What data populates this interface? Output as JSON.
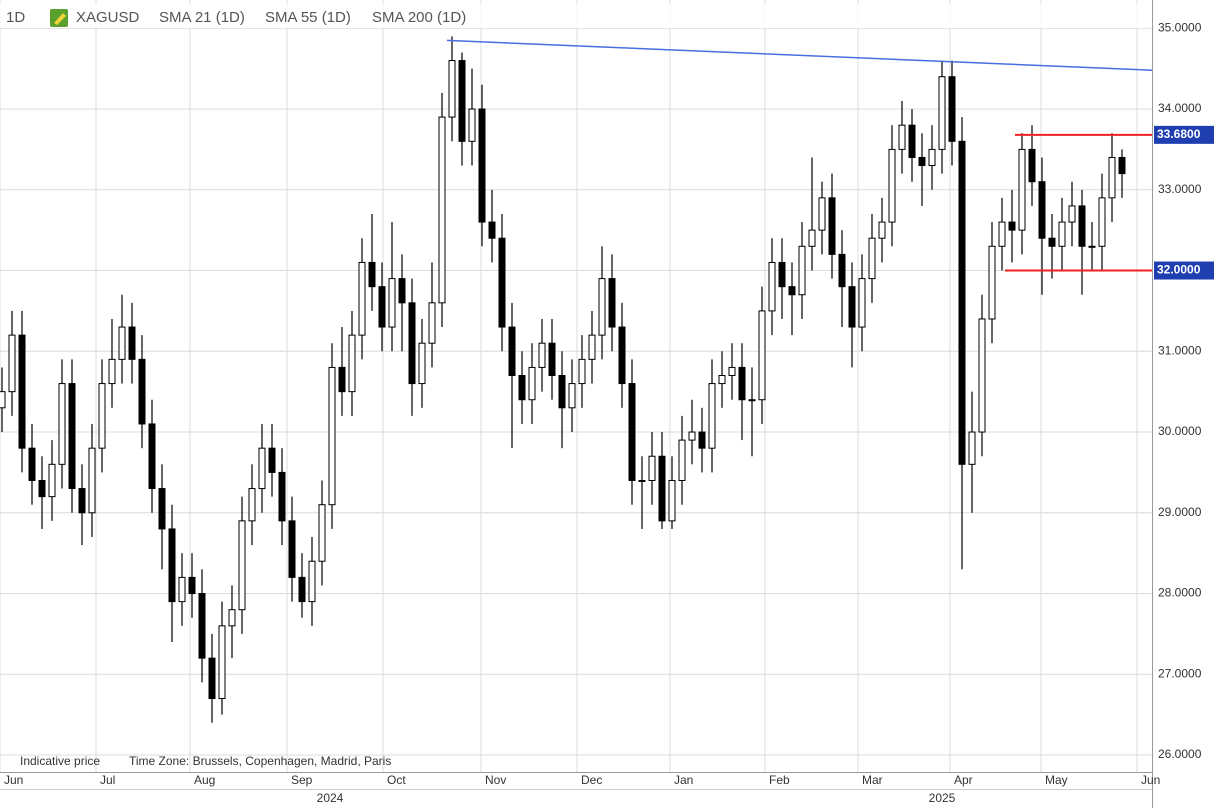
{
  "header": {
    "interval": "1D",
    "symbol": "XAGUSD",
    "indicators": [
      "SMA 21 (1D)",
      "SMA 55 (1D)",
      "SMA 200 (1D)"
    ]
  },
  "footer": {
    "note": "Indicative price",
    "timezone": "Time Zone: Brussels, Copenhagen, Madrid, Paris"
  },
  "chart_data": {
    "type": "candlestick",
    "up_color": "#ffffff",
    "down_color": "#000000",
    "grid": true,
    "ylim": [
      25.79,
      35.35
    ],
    "yticks": [
      {
        "value": 26,
        "label": "26.0000"
      },
      {
        "value": 27,
        "label": "27.0000"
      },
      {
        "value": 28,
        "label": "28.0000"
      },
      {
        "value": 29,
        "label": "29.0000"
      },
      {
        "value": 30,
        "label": "30.0000"
      },
      {
        "value": 31,
        "label": "31.0000"
      },
      {
        "value": 32,
        "label": "32.0000"
      },
      {
        "value": 33,
        "label": "33.0000"
      },
      {
        "value": 34,
        "label": "34.0000"
      },
      {
        "value": 35,
        "label": "35.0000"
      }
    ],
    "xlim": [
      -0.2,
      115
    ],
    "xticks": [
      {
        "value": -0.2,
        "label": "Jun"
      },
      {
        "value": 9.4,
        "label": "Jul"
      },
      {
        "value": 18.8,
        "label": "Aug"
      },
      {
        "value": 28.5,
        "label": "Sep"
      },
      {
        "value": 38.1,
        "label": "Oct"
      },
      {
        "value": 47.9,
        "label": "Nov"
      },
      {
        "value": 57.5,
        "label": "Dec"
      },
      {
        "value": 66.8,
        "label": "Jan"
      },
      {
        "value": 76.3,
        "label": "Feb"
      },
      {
        "value": 85.6,
        "label": "Mar"
      },
      {
        "value": 94.8,
        "label": "Apr"
      },
      {
        "value": 103.9,
        "label": "May"
      },
      {
        "value": 113.5,
        "label": "Jun"
      }
    ],
    "year_labels": [
      {
        "value": 32.8,
        "label": "2024"
      },
      {
        "value": 94,
        "label": "2025"
      }
    ],
    "open": [
      30.3,
      30.5,
      31.2,
      29.8,
      29.4,
      29.2,
      29.6,
      30.6,
      29.3,
      29.0,
      29.8,
      30.6,
      30.9,
      31.3,
      30.9,
      30.1,
      29.3,
      28.8,
      27.9,
      28.2,
      28.0,
      27.2,
      26.7,
      27.6,
      27.8,
      28.9,
      29.3,
      29.8,
      29.5,
      28.9,
      28.2,
      27.9,
      28.4,
      29.1,
      30.8,
      30.5,
      31.2,
      32.1,
      31.8,
      31.3,
      31.9,
      31.6,
      30.6,
      31.1,
      31.6,
      33.9,
      34.6,
      33.6,
      34.0,
      32.6,
      32.4,
      31.3,
      30.7,
      30.4,
      30.8,
      31.1,
      30.7,
      30.3,
      30.6,
      30.9,
      31.2,
      31.9,
      31.3,
      30.6,
      29.4,
      29.4,
      29.7,
      28.9,
      29.4,
      29.9,
      30.0,
      29.8,
      30.6,
      30.7,
      30.8,
      30.4,
      30.4,
      31.5,
      32.1,
      31.8,
      31.7,
      32.3,
      32.5,
      32.9,
      32.2,
      31.8,
      31.3,
      31.9,
      32.4,
      32.6,
      33.5,
      33.8,
      33.4,
      33.3,
      33.5,
      34.4,
      33.6,
      29.6,
      30.0,
      31.4,
      32.3,
      32.6,
      32.5,
      33.5,
      33.1,
      32.4,
      32.3,
      32.6,
      32.8,
      32.3,
      32.3,
      32.9,
      33.4
    ],
    "high": [
      30.8,
      31.5,
      31.5,
      30.1,
      29.7,
      29.9,
      30.9,
      30.9,
      29.6,
      30.1,
      30.9,
      31.4,
      31.7,
      31.6,
      31.2,
      30.4,
      29.6,
      29.1,
      28.5,
      28.5,
      28.3,
      27.5,
      27.9,
      28.1,
      29.2,
      29.6,
      30.1,
      30.1,
      29.8,
      29.2,
      28.5,
      28.7,
      29.4,
      31.1,
      31.3,
      31.5,
      32.4,
      32.7,
      32.1,
      32.6,
      32.2,
      31.9,
      31.4,
      32.1,
      34.2,
      34.9,
      34.7,
      34.5,
      34.3,
      33.0,
      32.7,
      31.6,
      31.0,
      31.1,
      31.4,
      31.4,
      31.0,
      30.9,
      31.2,
      31.5,
      32.3,
      32.2,
      31.6,
      30.9,
      29.7,
      30.0,
      30.0,
      29.7,
      30.2,
      30.4,
      30.3,
      30.9,
      31.0,
      31.1,
      31.1,
      30.8,
      31.8,
      32.4,
      32.4,
      32.1,
      32.6,
      33.4,
      33.1,
      33.2,
      32.5,
      32.1,
      32.2,
      32.7,
      32.9,
      33.8,
      34.1,
      34.0,
      33.7,
      33.8,
      34.6,
      34.6,
      33.9,
      30.5,
      31.7,
      32.6,
      32.9,
      33.0,
      33.7,
      33.8,
      33.4,
      32.7,
      32.9,
      33.1,
      33.0,
      32.6,
      33.2,
      33.7,
      33.5
    ],
    "low": [
      30.0,
      30.2,
      29.5,
      29.1,
      28.8,
      28.9,
      29.3,
      29.0,
      28.6,
      28.7,
      29.5,
      30.3,
      30.6,
      30.6,
      29.8,
      29.0,
      28.3,
      27.4,
      27.6,
      27.7,
      26.9,
      26.4,
      26.5,
      27.2,
      27.5,
      28.6,
      29.0,
      29.2,
      28.6,
      27.9,
      27.7,
      27.6,
      28.1,
      28.8,
      30.2,
      30.2,
      30.9,
      31.5,
      31.0,
      31.0,
      31.0,
      30.2,
      30.3,
      30.8,
      31.3,
      33.6,
      33.3,
      33.3,
      32.3,
      32.1,
      31.0,
      29.8,
      30.1,
      30.1,
      30.5,
      30.4,
      29.8,
      30.0,
      30.3,
      30.6,
      30.9,
      31.0,
      30.3,
      29.1,
      28.8,
      29.1,
      28.8,
      28.8,
      29.1,
      29.6,
      29.5,
      29.5,
      30.3,
      30.4,
      29.9,
      29.7,
      30.1,
      31.2,
      31.4,
      31.2,
      31.4,
      32.0,
      32.2,
      31.9,
      31.3,
      30.8,
      31.0,
      31.6,
      32.1,
      32.3,
      33.2,
      33.1,
      32.8,
      33.0,
      33.2,
      33.3,
      28.3,
      29.0,
      29.7,
      31.1,
      32.0,
      32.1,
      32.2,
      32.8,
      31.7,
      31.9,
      32.0,
      32.3,
      31.7,
      32.0,
      32.0,
      32.6,
      32.9
    ],
    "close": [
      30.5,
      31.2,
      29.8,
      29.4,
      29.2,
      29.6,
      30.6,
      29.3,
      29.0,
      29.8,
      30.6,
      30.9,
      31.3,
      30.9,
      30.1,
      29.3,
      28.8,
      27.9,
      28.2,
      28.0,
      27.2,
      26.7,
      27.6,
      27.8,
      28.9,
      29.3,
      29.8,
      29.5,
      28.9,
      28.2,
      27.9,
      28.4,
      29.1,
      30.8,
      30.5,
      31.2,
      32.1,
      31.8,
      31.3,
      31.9,
      31.6,
      30.6,
      31.1,
      31.6,
      33.9,
      34.6,
      33.6,
      34.0,
      32.6,
      32.4,
      31.3,
      30.7,
      30.4,
      30.8,
      31.1,
      30.7,
      30.3,
      30.6,
      30.9,
      31.2,
      31.9,
      31.3,
      30.6,
      29.4,
      29.4,
      29.7,
      28.9,
      29.4,
      29.9,
      30.0,
      29.8,
      30.6,
      30.7,
      30.8,
      30.4,
      30.4,
      31.5,
      32.1,
      31.8,
      31.7,
      32.3,
      32.5,
      32.9,
      32.2,
      31.8,
      31.3,
      31.9,
      32.4,
      32.6,
      33.5,
      33.8,
      33.4,
      33.3,
      33.5,
      34.4,
      33.6,
      29.6,
      30.0,
      31.4,
      32.3,
      32.6,
      32.5,
      33.5,
      33.1,
      32.4,
      32.3,
      32.6,
      32.8,
      32.3,
      32.3,
      32.9,
      33.4,
      33.2
    ],
    "trendline": {
      "color": "#4a6ee0",
      "x": [
        44.5,
        115
      ],
      "y": [
        34.85,
        34.48
      ]
    },
    "levels": [
      {
        "value": 33.68,
        "label": "33.6800",
        "x_start": 101.3,
        "color": "#ee2222"
      },
      {
        "value": 32.0,
        "label": "32.0000",
        "x_start": 100.3,
        "color": "#ee2222"
      }
    ]
  }
}
